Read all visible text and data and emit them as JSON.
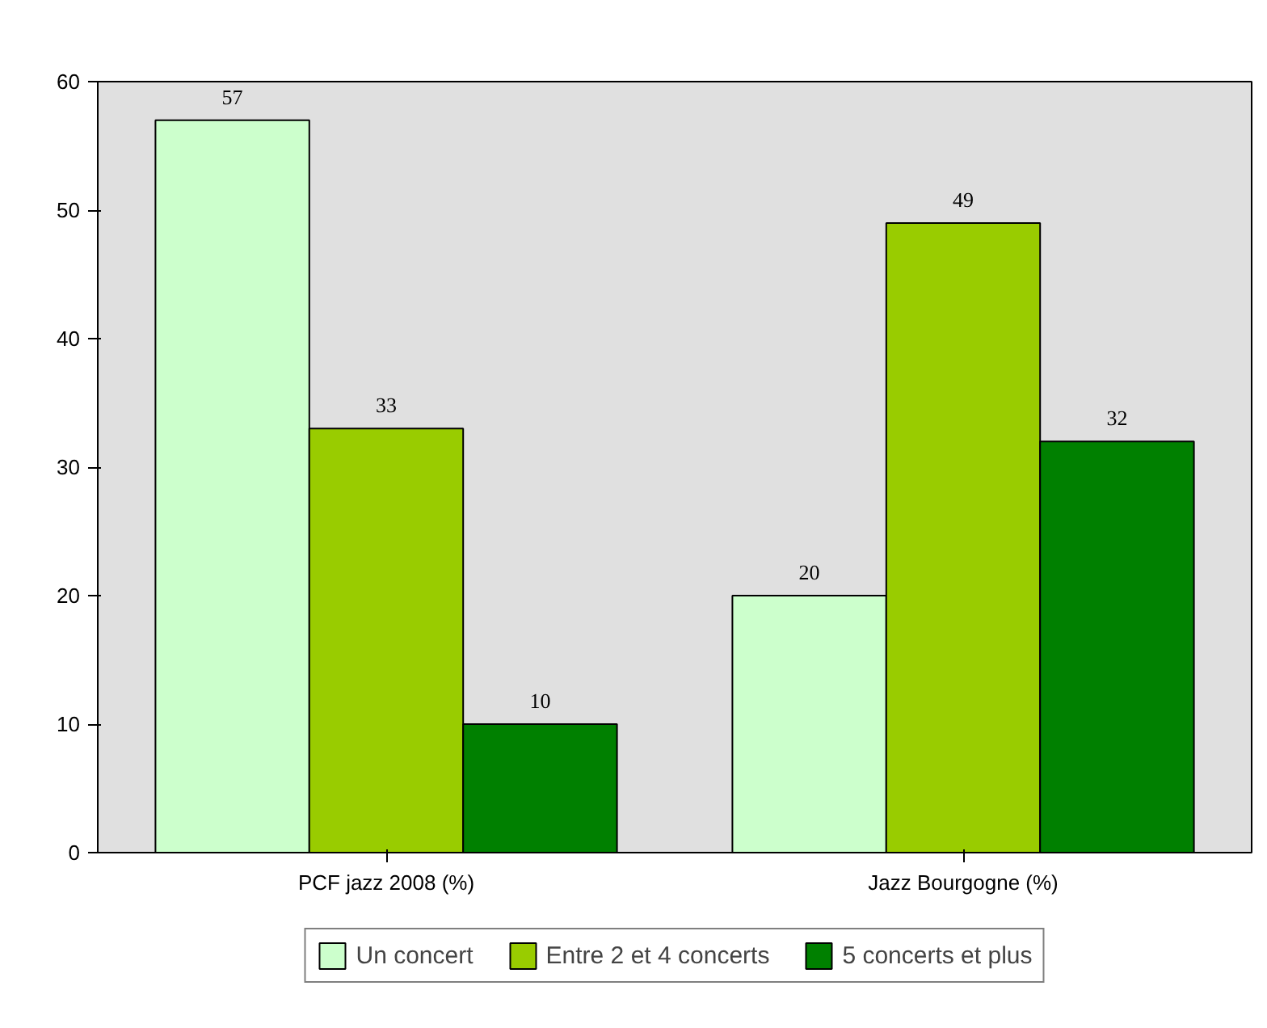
{
  "chart_data": {
    "type": "bar",
    "categories": [
      "PCF jazz 2008 (%)",
      "Jazz Bourgogne (%)"
    ],
    "series": [
      {
        "name": "Un concert",
        "color": "#ccffcc",
        "values": [
          57,
          20
        ]
      },
      {
        "name": "Entre 2 et 4 concerts",
        "color": "#99cc00",
        "values": [
          33,
          49
        ]
      },
      {
        "name": "5 concerts et plus",
        "color": "#008000",
        "values": [
          10,
          32
        ]
      }
    ],
    "ylim": [
      0,
      60
    ],
    "yticks": [
      0,
      10,
      20,
      30,
      40,
      50,
      60
    ],
    "data_labels": true,
    "legend": "bottom",
    "grid": false
  }
}
